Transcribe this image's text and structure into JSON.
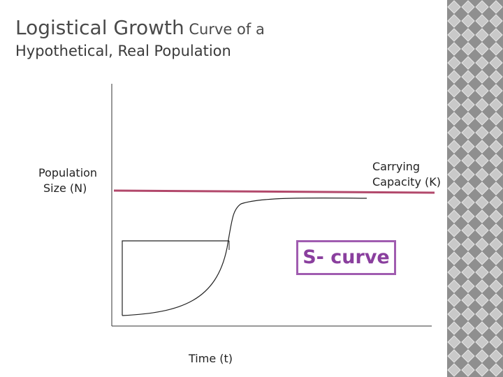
{
  "title": {
    "part_large": "Logistical Growth",
    "part_small": " Curve of a",
    "line2": "Hypothetical, Real Population"
  },
  "diagram": {
    "y_axis_label_line1": "Population",
    "y_axis_label_line2": "Size (N)",
    "x_axis_label": "Time (t)",
    "carrying_capacity_line1": "Carrying",
    "carrying_capacity_line2": "Capacity (K)",
    "curve_label": "S- curve"
  },
  "colors": {
    "carrying_capacity_line": "#b2486b",
    "curve_label_border": "#a05cb0",
    "curve_label_text": "#8a3f9e",
    "decor_pattern": "#9e9e9e"
  }
}
